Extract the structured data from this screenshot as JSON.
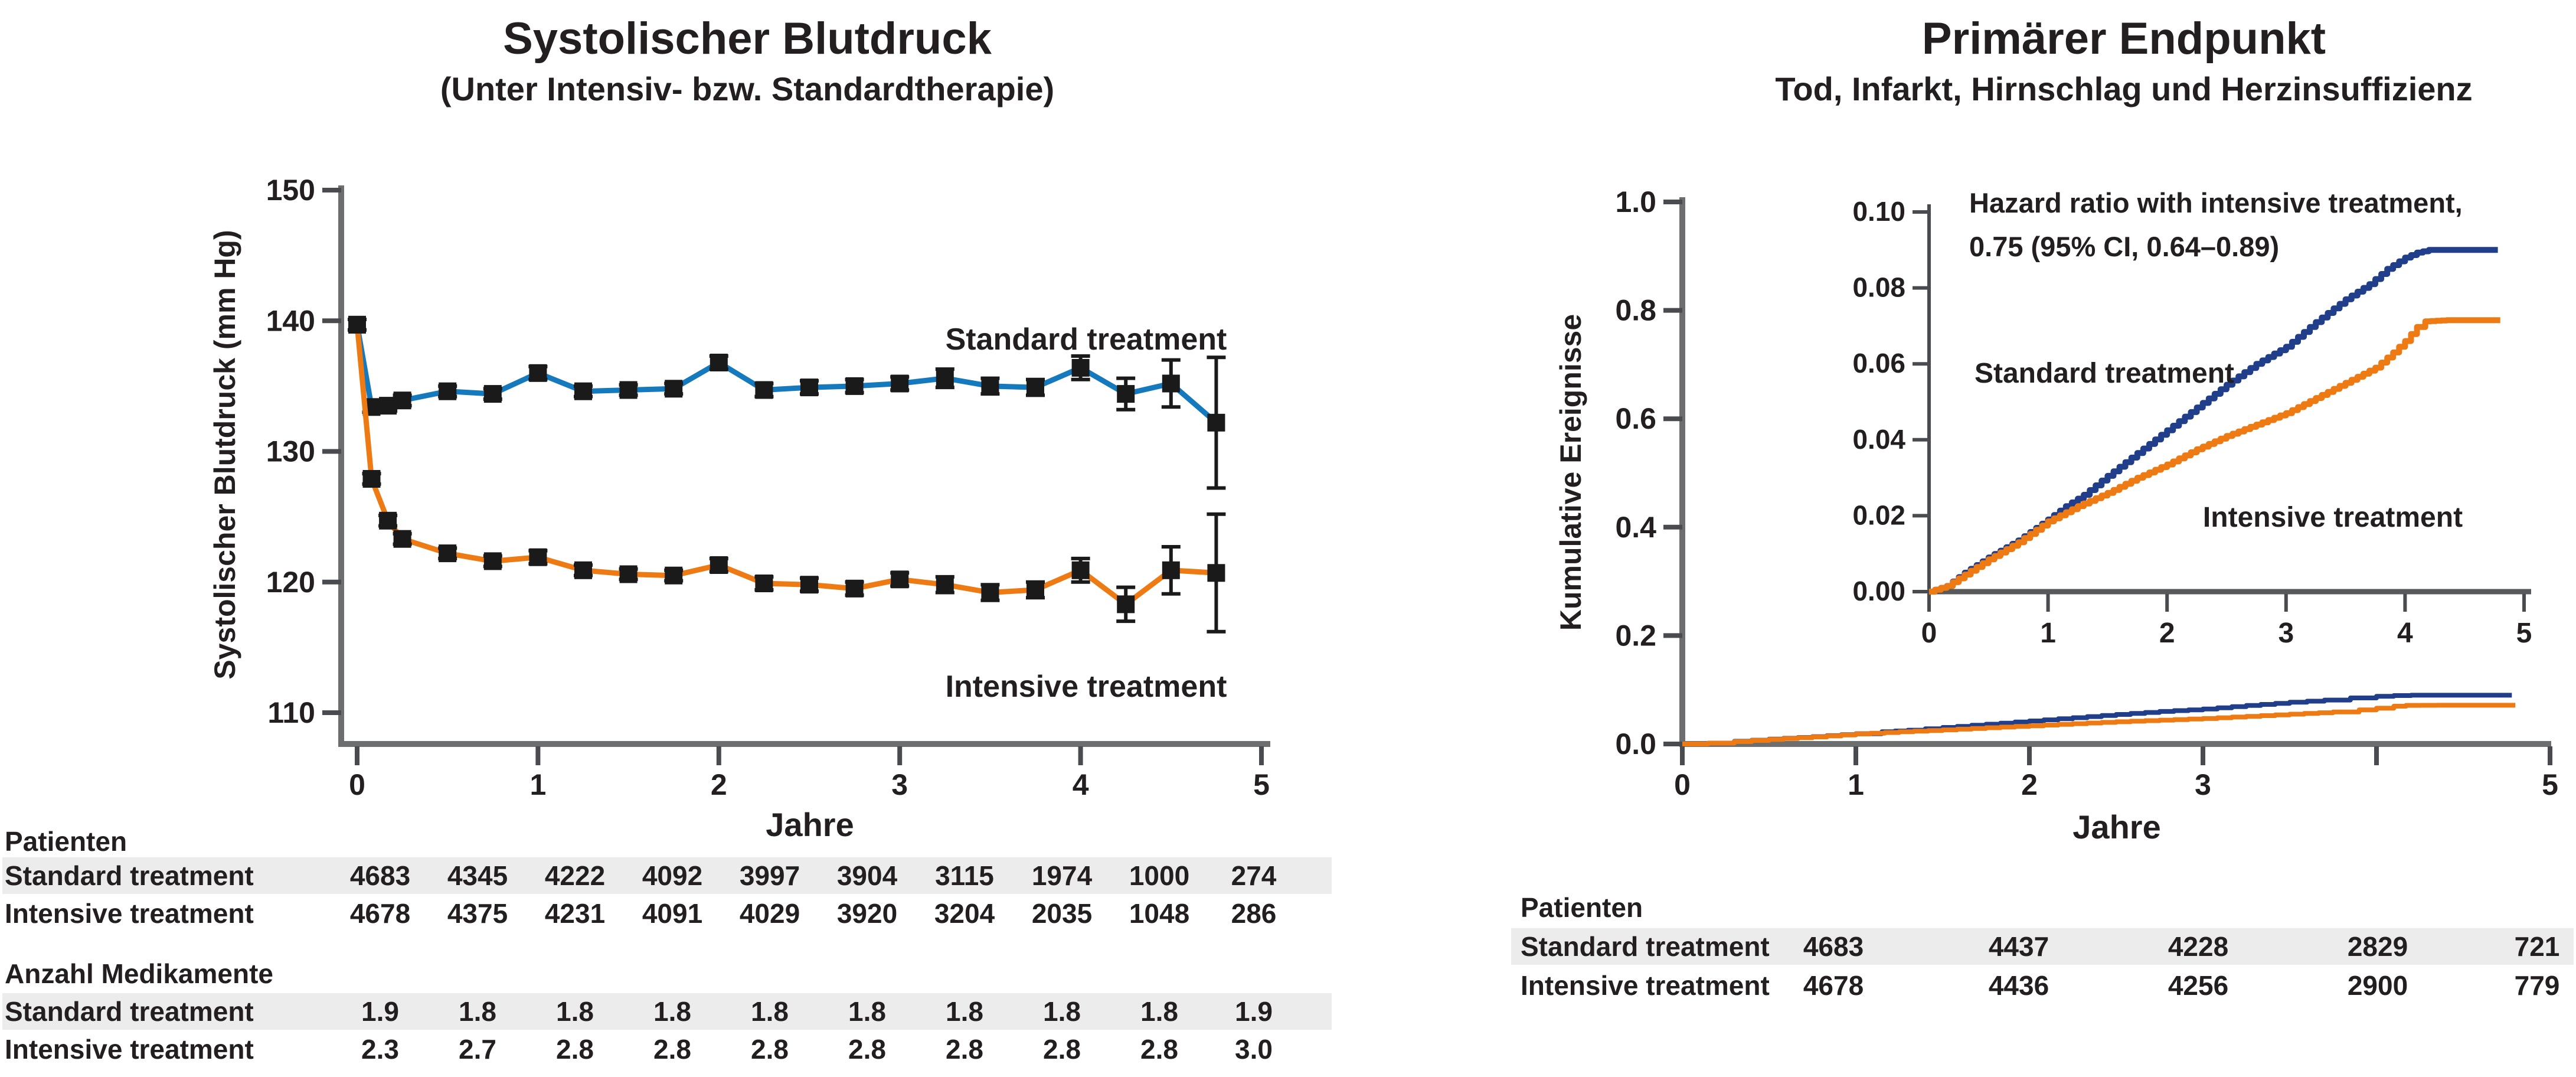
{
  "colors": {
    "standard_bp_line": "#1579BE",
    "intensive_line": "#EE7A14",
    "standard_events_line": "#203E8A",
    "marker": "#1A1A1A",
    "axis": "#6D6E70",
    "inset_axis": "#4A4B4E",
    "row_shade": "#ECECED",
    "text": "#231F20"
  },
  "left_panel": {
    "title": "Systolischer Blutdruck",
    "subtitle": "(Unter Intensiv- bzw. Standardtherapie)",
    "y_axis_label": "Systolischer Blutdruck (mm Hg)",
    "x_axis_label": "Jahre",
    "series_labels": {
      "standard": "Standard treatment",
      "intensive": "Intensive treatment"
    },
    "patients_header": "Patienten",
    "meds_header": "Anzahl Medikamente",
    "patients_rows": [
      {
        "label": "Standard treatment",
        "shaded": true,
        "values": [
          "4683",
          "4345",
          "4222",
          "4092",
          "3997",
          "3904",
          "3115",
          "1974",
          "1000",
          "274"
        ]
      },
      {
        "label": "Intensive treatment",
        "shaded": false,
        "values": [
          "4678",
          "4375",
          "4231",
          "4091",
          "4029",
          "3920",
          "3204",
          "2035",
          "1048",
          "286"
        ]
      }
    ],
    "meds_rows": [
      {
        "label": "Standard treatment",
        "shaded": true,
        "values": [
          "1.9",
          "1.8",
          "1.8",
          "1.8",
          "1.8",
          "1.8",
          "1.8",
          "1.8",
          "1.8",
          "1.9"
        ]
      },
      {
        "label": "Intensive treatment",
        "shaded": false,
        "values": [
          "2.3",
          "2.7",
          "2.8",
          "2.8",
          "2.8",
          "2.8",
          "2.8",
          "2.8",
          "2.8",
          "3.0"
        ]
      }
    ]
  },
  "right_panel": {
    "title": "Primärer Endpunkt",
    "subtitle": "Tod, Infarkt, Hirnschlag und Herzinsuffizienz",
    "y_axis_label": "Kumulative Ereignisse",
    "x_axis_label": "Jahre",
    "annotation_line1": "Hazard ratio with intensive treatment,",
    "annotation_line2": "0.75 (95% CI, 0.64–0.89)",
    "series_labels": {
      "standard": "Standard treatment",
      "intensive": "Intensive treatment"
    },
    "patients_header": "Patienten",
    "patients_rows": [
      {
        "label": "Standard treatment",
        "shaded": true,
        "values": [
          "4683",
          "4437",
          "4228",
          "2829",
          "721"
        ]
      },
      {
        "label": "Intensive treatment",
        "shaded": false,
        "values": [
          "4678",
          "4436",
          "4256",
          "2900",
          "779"
        ]
      }
    ]
  },
  "chart_data": [
    {
      "type": "line",
      "title": "Systolischer Blutdruck",
      "subtitle": "(Unter Intensiv- bzw. Standardtherapie)",
      "xlabel": "Jahre",
      "ylabel": "Systolischer Blutdruck (mm Hg)",
      "ylim": [
        107.5,
        150
      ],
      "yticks": [
        110,
        120,
        130,
        140,
        150
      ],
      "xticks": [
        0,
        1,
        2,
        3,
        4,
        5
      ],
      "grid": false,
      "legend_position": "inline-labels",
      "x": [
        0,
        0.08,
        0.17,
        0.25,
        0.5,
        0.75,
        1.0,
        1.25,
        1.5,
        1.75,
        2.0,
        2.25,
        2.5,
        2.75,
        3.0,
        3.25,
        3.5,
        3.75,
        4.0,
        4.25,
        4.5,
        4.75
      ],
      "series": [
        {
          "name": "Standard treatment",
          "color": "#1579BE",
          "values": [
            139.7,
            133.4,
            133.5,
            133.9,
            134.6,
            134.4,
            136.0,
            134.6,
            134.7,
            134.8,
            136.8,
            134.7,
            134.9,
            135.0,
            135.2,
            135.6,
            135.0,
            134.9,
            136.4,
            134.4,
            135.2,
            132.2
          ],
          "stderr": [
            0.4,
            0.4,
            0.4,
            0.4,
            0.4,
            0.4,
            0.5,
            0.4,
            0.4,
            0.4,
            0.5,
            0.5,
            0.5,
            0.5,
            0.5,
            0.7,
            0.6,
            0.6,
            0.9,
            1.2,
            1.8,
            5.0
          ]
        },
        {
          "name": "Intensive treatment",
          "color": "#EE7A14",
          "values": [
            139.7,
            127.9,
            124.7,
            123.3,
            122.2,
            121.6,
            121.9,
            120.9,
            120.6,
            120.5,
            121.3,
            119.9,
            119.8,
            119.5,
            120.2,
            119.8,
            119.2,
            119.4,
            120.9,
            118.3,
            120.9,
            120.7
          ],
          "stderr": [
            0.4,
            0.4,
            0.4,
            0.4,
            0.4,
            0.4,
            0.5,
            0.4,
            0.4,
            0.4,
            0.5,
            0.5,
            0.5,
            0.5,
            0.5,
            0.6,
            0.6,
            0.6,
            0.9,
            1.3,
            1.8,
            4.5
          ]
        }
      ]
    },
    {
      "type": "line",
      "title": "Primärer Endpunkt",
      "subtitle": "Tod, Infarkt, Hirnschlag und Herzinsuffizienz",
      "xlabel": "Jahre",
      "ylabel": "Kumulative Ereignisse",
      "ylim": [
        0,
        1.0
      ],
      "yticks": [
        1.0,
        0.8,
        0.6,
        0.4,
        0.2,
        0.0
      ],
      "ytick_labels": [
        "1.0",
        "0.8",
        "0.6",
        "0.4",
        "0.2",
        "0.0"
      ],
      "xticks": [
        0,
        1,
        2,
        3,
        4,
        5
      ],
      "xtick_labels": [
        "0",
        "1",
        "2",
        "3",
        "",
        "5"
      ],
      "grid": false,
      "annotation": [
        "Hazard ratio with intensive treatment,",
        "0.75 (95% CI, 0.64–0.89)"
      ],
      "inset": {
        "ylim": [
          0,
          0.1
        ],
        "yticks": [
          0.1,
          0.08,
          0.06,
          0.04,
          0.02,
          0.0
        ],
        "ytick_labels": [
          "0.10",
          "0.08",
          "0.06",
          "0.04",
          "0.02",
          "0.00"
        ],
        "xticks": [
          0,
          1,
          2,
          3,
          4,
          5
        ]
      },
      "series": [
        {
          "name": "Standard treatment",
          "color": "#203E8A",
          "points": [
            [
              0,
              0
            ],
            [
              0.15,
              0.0015
            ],
            [
              0.3,
              0.005
            ],
            [
              0.5,
              0.009
            ],
            [
              0.75,
              0.0135
            ],
            [
              1,
              0.019
            ],
            [
              1.15,
              0.0225
            ],
            [
              1.3,
              0.0255
            ],
            [
              1.5,
              0.0305
            ],
            [
              1.75,
              0.0365
            ],
            [
              2,
              0.0425
            ],
            [
              2.25,
              0.0485
            ],
            [
              2.5,
              0.0545
            ],
            [
              2.75,
              0.06
            ],
            [
              3,
              0.0645
            ],
            [
              3.25,
              0.071
            ],
            [
              3.5,
              0.077
            ],
            [
              3.7,
              0.081
            ],
            [
              3.85,
              0.085
            ],
            [
              4.0,
              0.088
            ],
            [
              4.1,
              0.0893
            ],
            [
              4.2,
              0.09
            ],
            [
              4.78,
              0.09
            ]
          ]
        },
        {
          "name": "Intensive treatment",
          "color": "#EE7A14",
          "points": [
            [
              0,
              0
            ],
            [
              0.15,
              0.0015
            ],
            [
              0.3,
              0.0045
            ],
            [
              0.5,
              0.0085
            ],
            [
              0.75,
              0.013
            ],
            [
              1,
              0.0185
            ],
            [
              1.25,
              0.0225
            ],
            [
              1.5,
              0.026
            ],
            [
              1.75,
              0.03
            ],
            [
              2,
              0.0335
            ],
            [
              2.25,
              0.0375
            ],
            [
              2.5,
              0.041
            ],
            [
              2.75,
              0.044
            ],
            [
              3,
              0.047
            ],
            [
              3.25,
              0.051
            ],
            [
              3.5,
              0.055
            ],
            [
              3.75,
              0.059
            ],
            [
              3.9,
              0.063
            ],
            [
              4.0,
              0.066
            ],
            [
              4.1,
              0.0697
            ],
            [
              4.17,
              0.0712
            ],
            [
              4.35,
              0.0715
            ],
            [
              4.8,
              0.0715
            ]
          ]
        }
      ]
    }
  ]
}
